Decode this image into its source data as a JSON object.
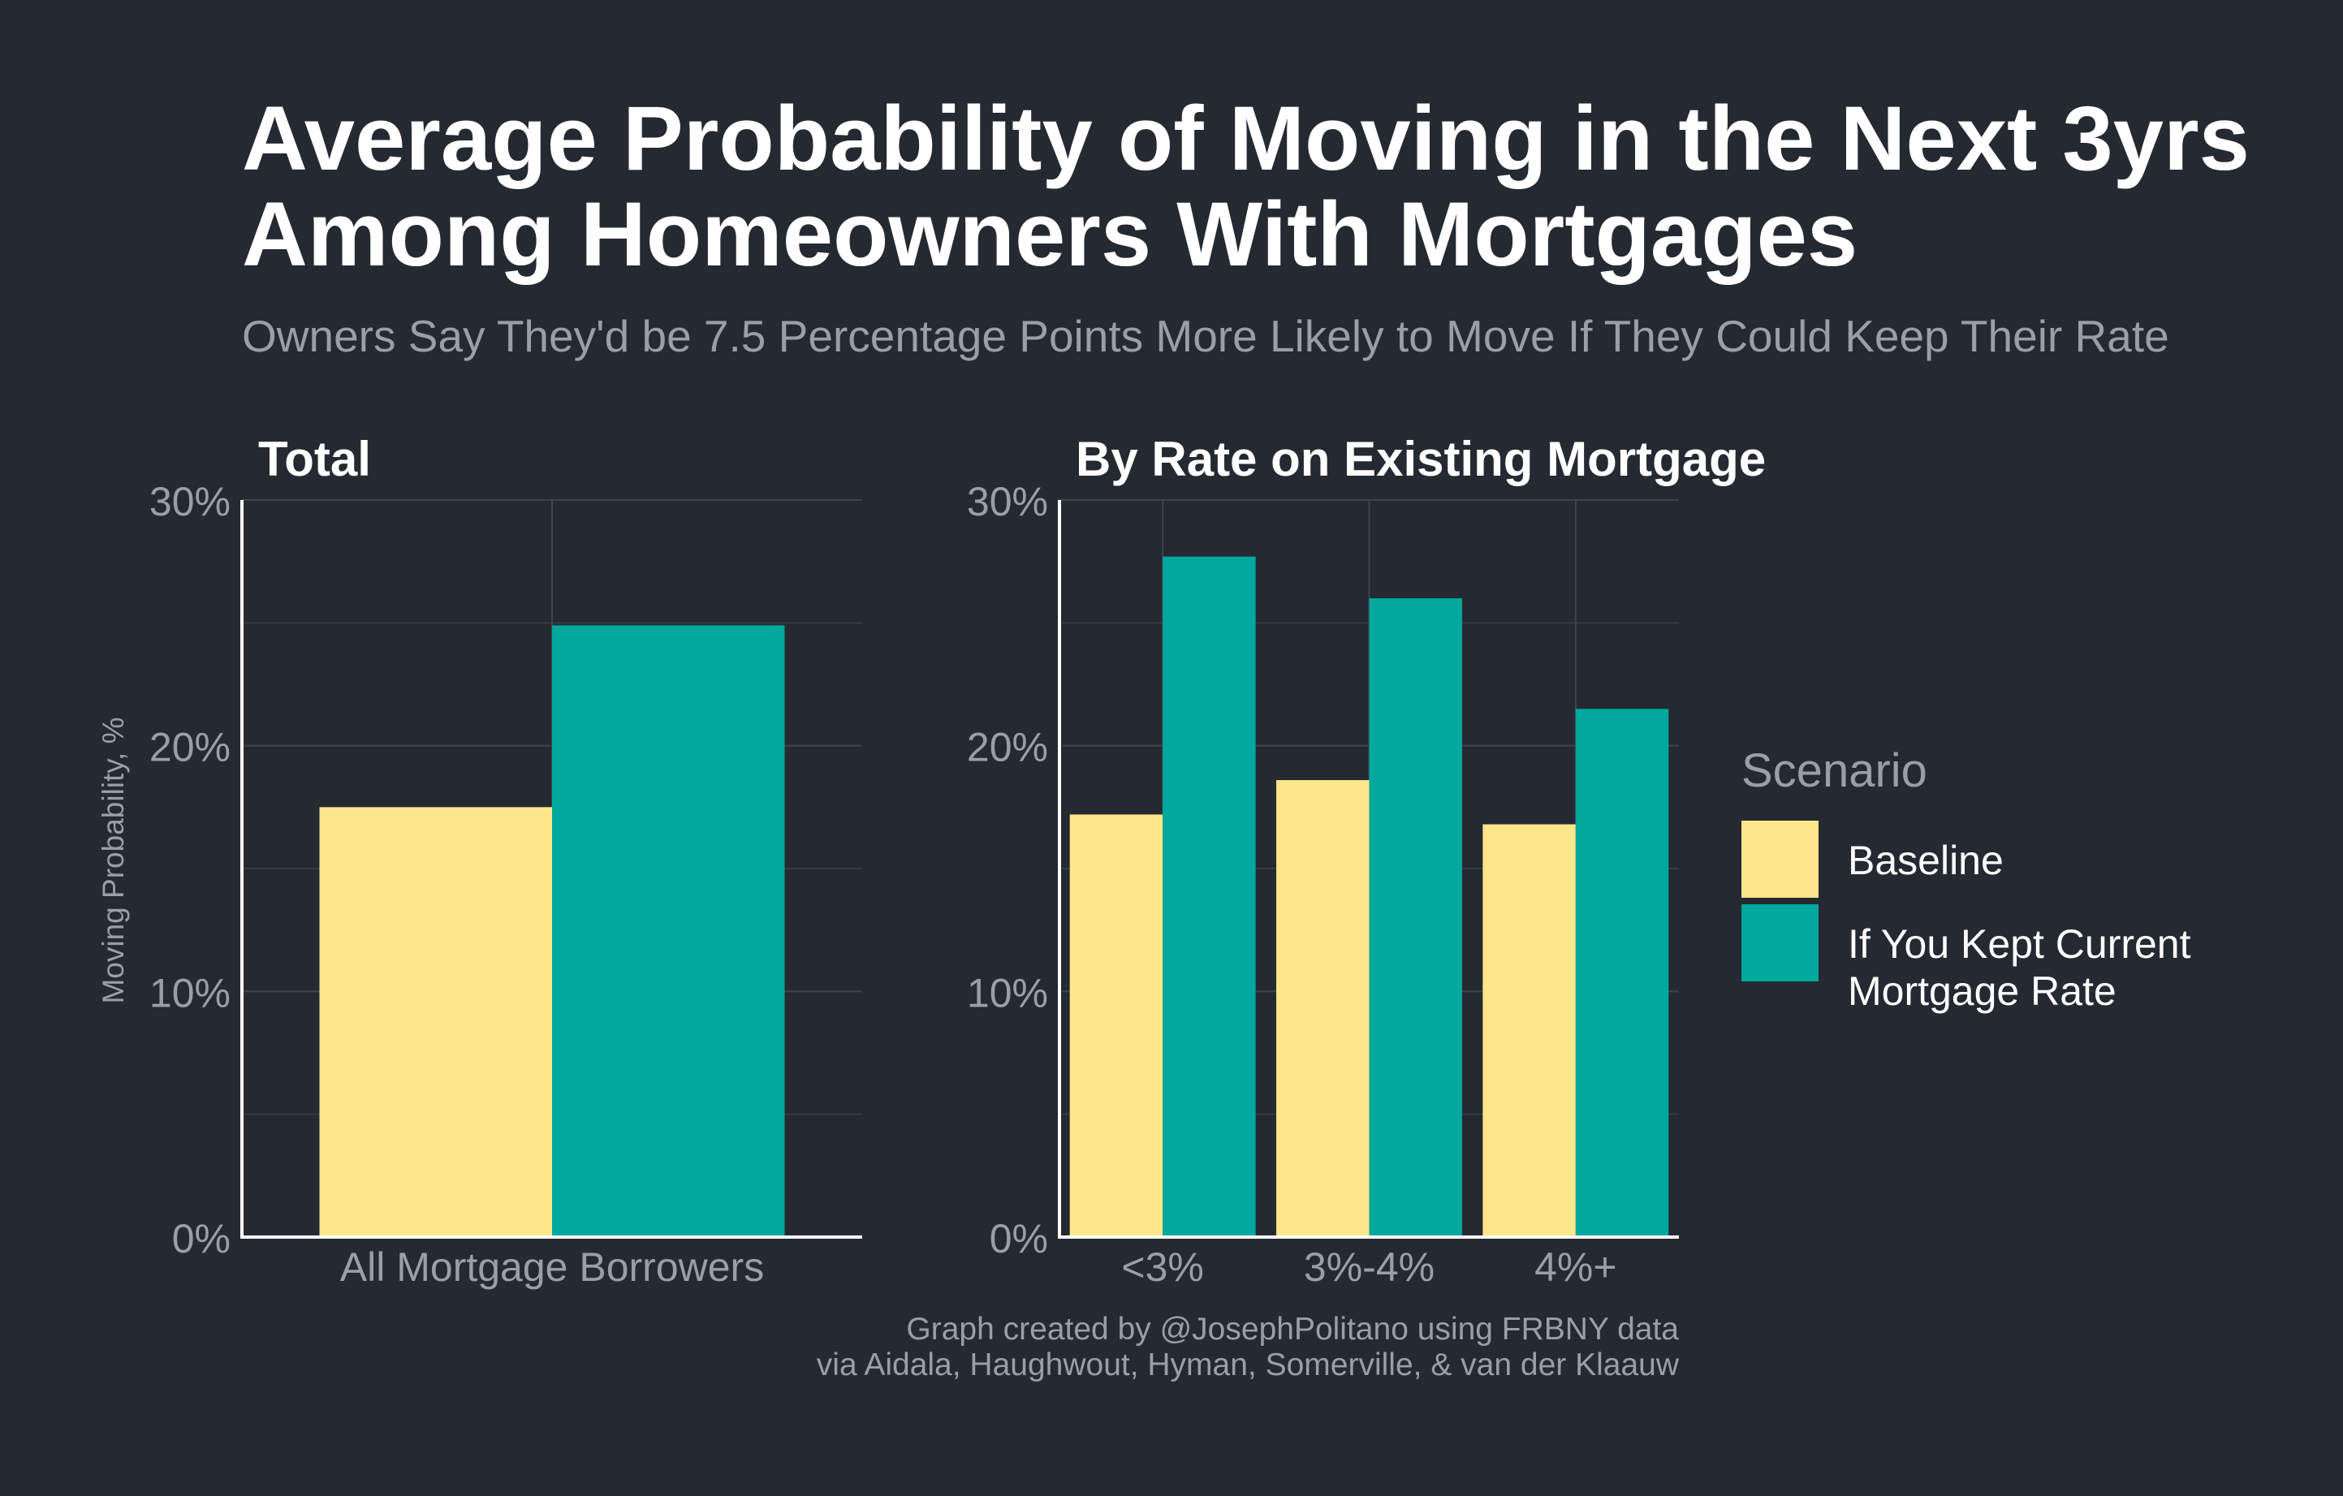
{
  "title_lines": [
    "Average Probability of Moving in the Next 3yrs",
    "Among Homeowners With Mortgages"
  ],
  "subtitle": "Owners Say They'd be 7.5 Percentage Points More Likely to Move If They Could Keep Their Rate",
  "caption_lines": [
    "Graph created by @JosephPolitano using FRBNY data",
    "via Aidala, Haughwout, Hyman, Somerville, & van der Klaauw"
  ],
  "colors": {
    "background": "#252932",
    "baseline": "#FFE68A",
    "kept_rate": "#00A89D",
    "grid": "#3E434D",
    "axis_text": "#9a9ea6"
  },
  "legend": {
    "title": "Scenario",
    "items": [
      {
        "label": "Baseline",
        "color": "#FFE68A"
      },
      {
        "label": "If You Kept Current Mortgage Rate",
        "color": "#00A89D"
      }
    ]
  },
  "chart_data": [
    {
      "type": "bar",
      "title": "Total",
      "categories": [
        "All Mortgage Borrowers"
      ],
      "series": [
        {
          "name": "Baseline",
          "values": [
            17.5
          ]
        },
        {
          "name": "If You Kept Current Mortgage Rate",
          "values": [
            24.9
          ]
        }
      ],
      "ylabel": "Moving Probability, %",
      "ylim": [
        0,
        30
      ],
      "yticks": [
        0,
        10,
        20,
        30
      ],
      "ytick_labels": [
        "0%",
        "10%",
        "20%",
        "30%"
      ],
      "grid": true
    },
    {
      "type": "bar",
      "title": "By Rate on Existing Mortgage",
      "categories": [
        "<3%",
        "3%-4%",
        "4%+"
      ],
      "series": [
        {
          "name": "Baseline",
          "values": [
            17.2,
            18.6,
            16.8
          ]
        },
        {
          "name": "If You Kept Current Mortgage Rate",
          "values": [
            27.7,
            26.0,
            21.5
          ]
        }
      ],
      "ylabel": "",
      "ylim": [
        0,
        30
      ],
      "yticks": [
        0,
        10,
        20,
        30
      ],
      "ytick_labels": [
        "0%",
        "10%",
        "20%",
        "30%"
      ],
      "grid": true
    }
  ]
}
